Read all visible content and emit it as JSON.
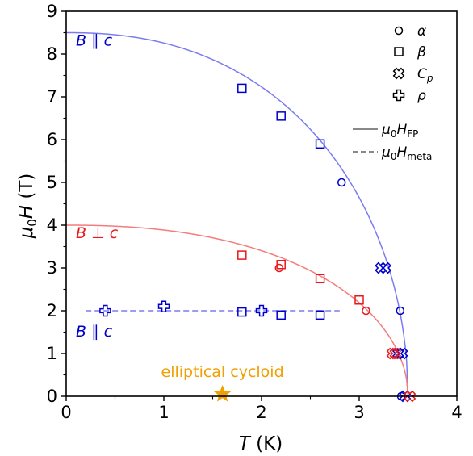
{
  "chart_data": {
    "type": "scatter",
    "x_label_italic": "T",
    "x_label_rest": "(K)",
    "y_label_sym": "μ",
    "y_label_sub": "0",
    "y_label_sym2": "H",
    "y_label_rest": "(T)",
    "xlim": [
      0,
      4
    ],
    "ylim": [
      0,
      9
    ],
    "xticks": [
      "0",
      "1",
      "2",
      "3",
      "4"
    ],
    "yticks": [
      "0",
      "1",
      "2",
      "3",
      "4",
      "5",
      "6",
      "7",
      "8",
      "9"
    ],
    "grid": false,
    "colors": {
      "blue": "#0000cc",
      "red": "#e8191c",
      "blue_line": "#7b7bf0",
      "red_line": "#f47c7c",
      "orange": "#f0a000"
    },
    "legend_markers": [
      {
        "marker": "circle",
        "label": "α"
      },
      {
        "marker": "square",
        "label": "β"
      },
      {
        "marker": "xcross",
        "label_main": "C",
        "label_sub": "p"
      },
      {
        "marker": "plus",
        "label": "ρ"
      }
    ],
    "legend_lines": [
      {
        "style": "solid",
        "label_main": "μ",
        "label_sub0": "0",
        "label_main2": "H",
        "label_sub": "FP"
      },
      {
        "style": "dashed",
        "label_main": "μ",
        "label_sub0": "0",
        "label_main2": "H",
        "label_sub": "meta"
      }
    ],
    "annotations": {
      "blue_top": {
        "label": "B ∥ c",
        "x": 0.05,
        "y": 8.2
      },
      "red": {
        "label": "B ⊥ c",
        "x": 0.05,
        "y": 3.7
      },
      "blue_bottom": {
        "label": "B ∥ c",
        "x": 0.05,
        "y": 1.4
      },
      "cycloid": {
        "label": "elliptical cycloid",
        "x": 1.6,
        "y": 0.45
      }
    },
    "curves": [
      {
        "name": "blue",
        "style": "solid",
        "H0": 8.5,
        "Tc": 3.5
      },
      {
        "name": "red",
        "style": "solid",
        "H0": 4.0,
        "Tc": 3.5
      },
      {
        "name": "blue",
        "style": "dashed",
        "x": [
          0.2,
          2.8
        ],
        "y": [
          2.0,
          2.0
        ]
      }
    ],
    "series": [
      {
        "color": "blue",
        "marker": "circle",
        "points": [
          [
            2.82,
            5.0
          ],
          [
            3.42,
            2.0
          ],
          [
            3.43,
            0.0
          ]
        ]
      },
      {
        "color": "blue",
        "marker": "square",
        "points": [
          [
            1.8,
            7.2
          ],
          [
            2.2,
            6.55
          ],
          [
            2.6,
            5.9
          ],
          [
            1.8,
            1.97
          ],
          [
            2.2,
            1.9
          ],
          [
            2.6,
            1.9
          ]
        ]
      },
      {
        "color": "blue",
        "marker": "xcross",
        "points": [
          [
            3.22,
            3.0
          ],
          [
            3.27,
            3.0
          ],
          [
            3.4,
            1.0
          ],
          [
            3.44,
            1.0
          ],
          [
            3.47,
            0.0
          ]
        ]
      },
      {
        "color": "blue",
        "marker": "plus",
        "points": [
          [
            0.4,
            2.0
          ],
          [
            1.0,
            2.1
          ],
          [
            2.0,
            2.0
          ]
        ]
      },
      {
        "color": "red",
        "marker": "circle",
        "points": [
          [
            2.18,
            3.0
          ],
          [
            3.07,
            2.0
          ]
        ]
      },
      {
        "color": "red",
        "marker": "square",
        "points": [
          [
            1.8,
            3.3
          ],
          [
            2.2,
            3.08
          ],
          [
            2.6,
            2.75
          ],
          [
            3.0,
            2.25
          ]
        ]
      },
      {
        "color": "red",
        "marker": "xcross",
        "points": [
          [
            3.34,
            1.0
          ],
          [
            3.37,
            1.0
          ],
          [
            3.52,
            0.0
          ]
        ]
      },
      {
        "color": "orange",
        "marker": "star",
        "points": [
          [
            1.6,
            0.05
          ]
        ]
      }
    ]
  }
}
